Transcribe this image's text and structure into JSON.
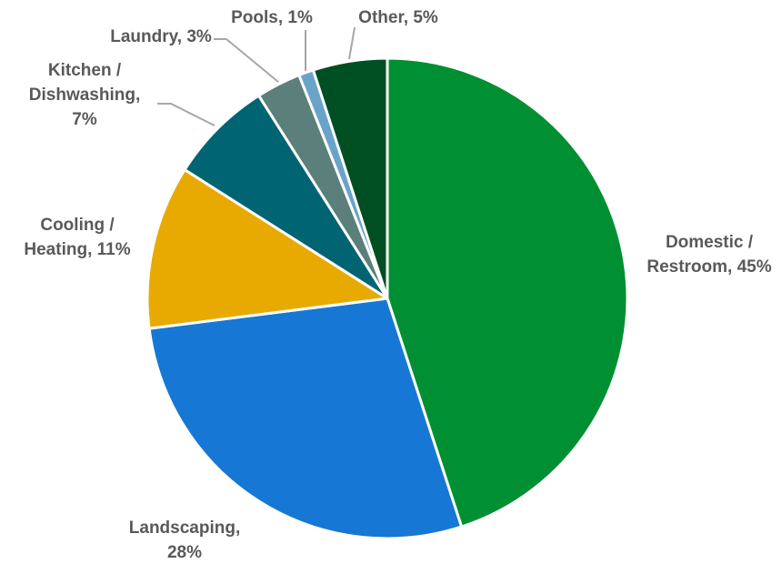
{
  "chart_data": {
    "type": "pie",
    "title": "",
    "slices": [
      {
        "label": "Domestic / Restroom",
        "value": 45,
        "color": "#008F32",
        "label_lines": [
          "Domestic /",
          "Restroom, 45%"
        ]
      },
      {
        "label": "Landscaping",
        "value": 28,
        "color": "#1777D4",
        "label_lines": [
          "Landscaping,",
          "28%"
        ]
      },
      {
        "label": "Cooling / Heating",
        "value": 11,
        "color": "#E8AA00",
        "label_lines": [
          "Cooling /",
          "Heating, 11%"
        ]
      },
      {
        "label": "Kitchen / Dishwashing",
        "value": 7,
        "color": "#006473",
        "label_lines": [
          "Kitchen /",
          "Dishwashing,",
          "7%"
        ]
      },
      {
        "label": "Laundry",
        "value": 3,
        "color": "#5B7F7A",
        "label_lines": [
          "Laundry, 3%"
        ]
      },
      {
        "label": "Pools",
        "value": 1,
        "color": "#6AA3C9",
        "label_lines": [
          "Pools, 1%"
        ]
      },
      {
        "label": "Other",
        "value": 5,
        "color": "#004F22",
        "label_lines": [
          "Other, 5%"
        ]
      }
    ],
    "start_angle_deg": 0,
    "direction": "clockwise",
    "legend": "none",
    "data_labels": "outside",
    "leader_line_color": "#A6A6A6",
    "label_color": "#595959"
  }
}
